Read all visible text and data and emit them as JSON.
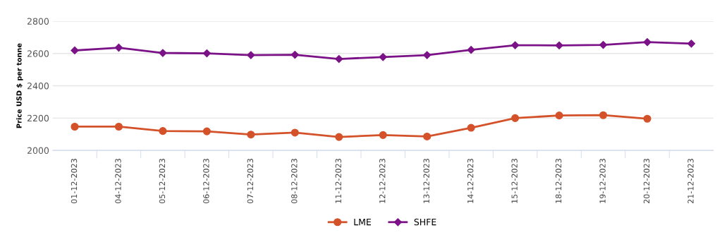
{
  "chart_data": {
    "type": "line",
    "ylabel": "Price USD $ per tonne",
    "categories": [
      "01-12-2023",
      "04-12-2023",
      "05-12-2023",
      "06-12-2023",
      "07-12-2023",
      "08-12-2023",
      "11-12-2023",
      "12-12-2023",
      "13-12-2023",
      "14-12-2023",
      "15-12-2023",
      "18-12-2023",
      "19-12-2023",
      "20-12-2023",
      "21-12-2023"
    ],
    "series": [
      {
        "name": "LME",
        "color": "#d4522a",
        "marker": "circle",
        "values": [
          2147,
          2147,
          2120,
          2118,
          2098,
          2110,
          2083,
          2095,
          2086,
          2140,
          2200,
          2216,
          2218,
          2196,
          null
        ]
      },
      {
        "name": "SHFE",
        "color": "#7b1287",
        "marker": "diamond",
        "values": [
          2619,
          2636,
          2603,
          2601,
          2590,
          2592,
          2566,
          2578,
          2590,
          2622,
          2651,
          2650,
          2653,
          2670,
          2661
        ]
      }
    ],
    "ylim": [
      2000,
      2800
    ],
    "yticks": [
      2000,
      2200,
      2400,
      2600,
      2800
    ],
    "grid": "y",
    "legend": "bottom",
    "line_style": "solid"
  }
}
